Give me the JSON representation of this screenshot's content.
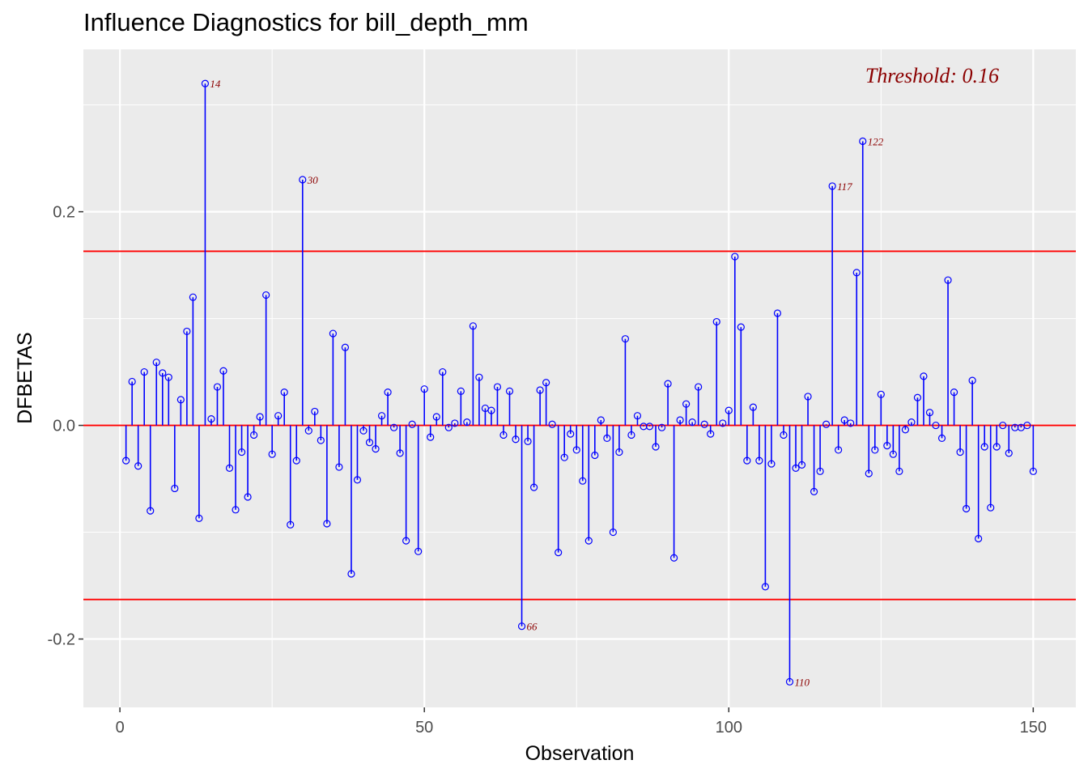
{
  "chart_data": {
    "type": "lollipop",
    "title": "Influence Diagnostics for bill_depth_mm",
    "xlabel": "Observation",
    "ylabel": "DFBETAS",
    "xlim": [
      -6,
      157
    ],
    "ylim": [
      -0.264,
      0.352
    ],
    "xticks": [
      0,
      50,
      100,
      150
    ],
    "xtick_labels": [
      "0",
      "50",
      "100",
      "150"
    ],
    "yticks": [
      -0.2,
      0.0,
      0.2
    ],
    "ytick_labels": [
      "-0.2",
      "0.0",
      "0.2"
    ],
    "threshold": 0.163,
    "threshold_label": "Threshold: 0.16",
    "grid": true,
    "colors": {
      "panel_bg": "#ebebeb",
      "grid": "#ffffff",
      "stem": "#0000ff",
      "threshold_line": "#ff0000",
      "label": "#8b0000"
    },
    "observations": [
      1,
      2,
      3,
      4,
      5,
      6,
      7,
      8,
      9,
      10,
      11,
      12,
      13,
      14,
      15,
      16,
      17,
      18,
      19,
      20,
      21,
      22,
      23,
      24,
      25,
      26,
      27,
      28,
      29,
      30,
      31,
      32,
      33,
      34,
      35,
      36,
      37,
      38,
      39,
      40,
      41,
      42,
      43,
      44,
      45,
      46,
      47,
      48,
      49,
      50,
      51,
      52,
      53,
      54,
      55,
      56,
      57,
      58,
      59,
      60,
      61,
      62,
      63,
      64,
      65,
      66,
      67,
      68,
      69,
      70,
      71,
      72,
      73,
      74,
      75,
      76,
      77,
      78,
      79,
      80,
      81,
      82,
      83,
      84,
      85,
      86,
      87,
      88,
      89,
      90,
      91,
      92,
      93,
      94,
      95,
      96,
      97,
      98,
      99,
      100,
      101,
      102,
      103,
      104,
      105,
      106,
      107,
      108,
      109,
      110,
      111,
      112,
      113,
      114,
      115,
      116,
      117,
      118,
      119,
      120,
      121,
      122,
      123,
      124,
      125,
      126,
      127,
      128,
      129,
      130,
      131,
      132,
      133,
      134,
      135,
      136,
      137,
      138,
      139,
      140,
      141,
      142,
      143,
      144,
      145,
      146,
      147,
      148,
      149,
      150
    ],
    "values": [
      -0.033,
      0.041,
      -0.038,
      0.05,
      -0.08,
      0.059,
      0.049,
      0.045,
      -0.059,
      0.024,
      0.088,
      0.12,
      -0.087,
      0.32,
      0.006,
      0.036,
      0.051,
      -0.04,
      -0.079,
      -0.025,
      -0.067,
      -0.009,
      0.008,
      0.122,
      -0.027,
      0.009,
      0.031,
      -0.093,
      -0.033,
      0.23,
      -0.005,
      0.013,
      -0.014,
      -0.092,
      0.086,
      -0.039,
      0.073,
      -0.139,
      -0.051,
      -0.005,
      -0.016,
      -0.022,
      0.009,
      0.031,
      -0.002,
      -0.026,
      -0.108,
      0.001,
      -0.118,
      0.034,
      -0.011,
      0.008,
      0.05,
      -0.002,
      0.002,
      0.032,
      0.003,
      0.093,
      0.045,
      0.016,
      0.014,
      0.036,
      -0.009,
      0.032,
      -0.013,
      -0.188,
      -0.015,
      -0.058,
      0.033,
      0.04,
      0.001,
      -0.119,
      -0.03,
      -0.008,
      -0.023,
      -0.052,
      -0.108,
      -0.028,
      0.005,
      -0.012,
      -0.1,
      -0.025,
      0.081,
      -0.009,
      0.009,
      -0.001,
      -0.001,
      -0.02,
      -0.002,
      0.039,
      -0.124,
      0.005,
      0.02,
      0.003,
      0.036,
      0.001,
      -0.008,
      0.097,
      0.002,
      0.014,
      0.158,
      0.092,
      -0.033,
      0.017,
      -0.033,
      -0.151,
      -0.036,
      0.105,
      -0.009,
      -0.24,
      -0.04,
      -0.037,
      0.027,
      -0.062,
      -0.043,
      0.001,
      0.224,
      -0.023,
      0.005,
      0.002,
      0.143,
      0.266,
      -0.045,
      -0.023,
      0.029,
      -0.019,
      -0.027,
      -0.043,
      -0.004,
      0.003,
      0.026,
      0.046,
      0.012,
      0.0,
      -0.012,
      0.136,
      0.031,
      -0.025,
      -0.078,
      0.042,
      -0.106,
      -0.02,
      -0.077,
      -0.02,
      0.0,
      -0.026,
      -0.002,
      -0.002,
      0.0,
      -0.043
    ],
    "labeled_points": [
      {
        "x": 14,
        "y": 0.32,
        "label": "14"
      },
      {
        "x": 30,
        "y": 0.23,
        "label": "30"
      },
      {
        "x": 66,
        "y": -0.188,
        "label": "66"
      },
      {
        "x": 110,
        "y": -0.24,
        "label": "110"
      },
      {
        "x": 117,
        "y": 0.224,
        "label": "117"
      },
      {
        "x": 122,
        "y": 0.266,
        "label": "122"
      }
    ]
  }
}
